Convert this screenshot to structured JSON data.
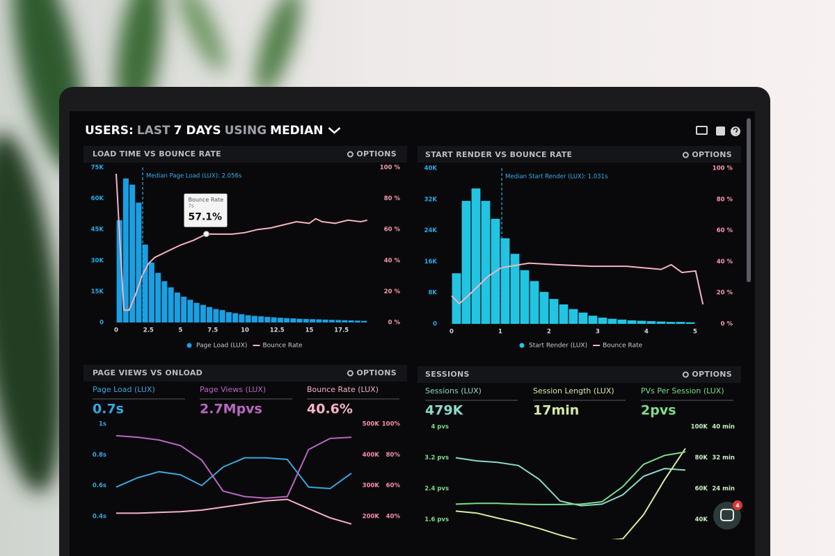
{
  "header": {
    "title_parts": [
      "USERS:",
      "LAST",
      "7 DAYS",
      "USING",
      "MEDIAN"
    ]
  },
  "chat_badge": 4,
  "panels": [
    {
      "type": "histogram-line",
      "title": "LOAD TIME VS BOUNCE RATE",
      "options": "OPTIONS",
      "median": 2.056,
      "annotation": "Median Page Load (LUX): 2.056s",
      "tooltip": {
        "title": "Bounce Rate",
        "x_label": "7s",
        "value_label": "57.1%",
        "x": 7,
        "value": 57.1
      },
      "xlim": [
        0,
        20
      ],
      "xticks": [
        0,
        2.5,
        5,
        7.5,
        10,
        12.5,
        15,
        17.5
      ],
      "ylim": [
        0,
        75000
      ],
      "yticks": [
        0,
        {
          "value": 15000,
          "label": "15K"
        },
        {
          "value": 30000,
          "label": "30K"
        },
        {
          "value": 45000,
          "label": "45K"
        },
        {
          "value": 60000,
          "label": "60K"
        },
        {
          "value": 75000,
          "label": "75K"
        }
      ],
      "y2lim": [
        0,
        100
      ],
      "y2ticks": [
        {
          "value": 0,
          "label": "0 %"
        },
        {
          "value": 20,
          "label": "20 %"
        },
        {
          "value": 40,
          "label": "40 %"
        },
        {
          "value": 60,
          "label": "60 %"
        },
        {
          "value": 80,
          "label": "80 %"
        },
        {
          "value": 100,
          "label": "100 %"
        }
      ],
      "bins": [
        0,
        0.5,
        1,
        1.5,
        2,
        2.5,
        3,
        3.5,
        4,
        4.5,
        5,
        5.5,
        6,
        6.5,
        7,
        7.5,
        8,
        8.5,
        9,
        9.5,
        10,
        10.5,
        11,
        11.5,
        12,
        12.5,
        13,
        13.5,
        14,
        14.5,
        15,
        15.5,
        16,
        16.5,
        17,
        17.5,
        18,
        18.5,
        19,
        19.5
      ],
      "series": [
        {
          "name": "Page Load (LUX)",
          "color": "#1a9fe2",
          "values": [
            49500,
            69700,
            66700,
            58000,
            37700,
            29000,
            24000,
            20000,
            17000,
            14500,
            12500,
            11000,
            9500,
            8500,
            7500,
            6500,
            6000,
            5000,
            4500,
            4000,
            3500,
            3200,
            3000,
            2700,
            2500,
            2300,
            2100,
            2000,
            1800,
            1700,
            1600,
            1500,
            1400,
            1300,
            1200,
            1100,
            1000,
            900,
            800
          ]
        },
        {
          "name": "Bounce Rate",
          "color": "#f4b4c2",
          "axis": "y2",
          "x": [
            0,
            0.3,
            0.6,
            1,
            1.5,
            2,
            2.5,
            3,
            4,
            5,
            6,
            7,
            8,
            9,
            10,
            11,
            12,
            13,
            14,
            15,
            15.5,
            16,
            17,
            18,
            19,
            19.5
          ],
          "values": [
            96,
            50,
            8,
            8,
            18,
            30,
            38,
            42,
            46,
            50,
            53,
            57.1,
            57,
            57,
            58,
            60,
            61,
            63,
            65,
            64,
            67,
            65,
            64,
            66,
            65,
            66
          ]
        }
      ]
    },
    {
      "type": "histogram-line",
      "title": "START RENDER VS BOUNCE RATE",
      "options": "OPTIONS",
      "median": 1.031,
      "annotation": "Median Start Render (LUX): 1.031s",
      "xlim": [
        0,
        5.2
      ],
      "xticks": [
        0,
        1,
        2,
        3,
        4,
        5
      ],
      "ylim": [
        0,
        40000
      ],
      "yticks": [
        0,
        {
          "value": 8000,
          "label": "8K"
        },
        {
          "value": 16000,
          "label": "16K"
        },
        {
          "value": 24000,
          "label": "24K"
        },
        {
          "value": 32000,
          "label": "32K"
        },
        {
          "value": 40000,
          "label": "40K"
        }
      ],
      "y2lim": [
        0,
        100
      ],
      "y2ticks": [
        {
          "value": 0,
          "label": "0 %"
        },
        {
          "value": 20,
          "label": "20 %"
        },
        {
          "value": 40,
          "label": "40 %"
        },
        {
          "value": 60,
          "label": "60 %"
        },
        {
          "value": 80,
          "label": "80 %"
        },
        {
          "value": 100,
          "label": "100 %"
        }
      ],
      "bins": [
        0,
        0.2,
        0.4,
        0.6,
        0.8,
        1,
        1.2,
        1.4,
        1.6,
        1.8,
        2,
        2.2,
        2.4,
        2.6,
        2.8,
        3,
        3.2,
        3.4,
        3.6,
        3.8,
        4,
        4.2,
        4.4,
        4.6,
        4.8,
        5
      ],
      "series": [
        {
          "name": "Start Render (LUX)",
          "color": "#22c4e2",
          "values": [
            13000,
            31600,
            34800,
            31600,
            27000,
            22000,
            18000,
            13800,
            11000,
            8200,
            6400,
            5000,
            3800,
            2900,
            2100,
            1600,
            1300,
            1100,
            900,
            800,
            700,
            600,
            500,
            500,
            400
          ]
        },
        {
          "name": "Bounce Rate",
          "color": "#f4b4c2",
          "axis": "y2",
          "x": [
            0,
            0.16,
            0.44,
            0.73,
            1.01,
            1.3,
            1.59,
            2.16,
            2.87,
            3.59,
            4.3,
            4.51,
            4.73,
            5.01,
            5.16
          ],
          "values": [
            18,
            13,
            21,
            30,
            36,
            37.5,
            39,
            38,
            37,
            37,
            35,
            38,
            33,
            34,
            12.5
          ]
        }
      ]
    },
    {
      "type": "line",
      "title": "PAGE VIEWS VS ONLOAD",
      "options": "OPTIONS",
      "categories": [
        null,
        null,
        null,
        null,
        null,
        null,
        null,
        null,
        null,
        null,
        null,
        null
      ],
      "ylim": [
        0.3,
        1.05
      ],
      "yticks": [
        {
          "value": 1,
          "label": "1s"
        },
        {
          "value": 0.8,
          "label": "0.8s"
        },
        {
          "value": 0.6,
          "label": "0.6s"
        },
        {
          "value": 0.4,
          "label": "0.4s"
        }
      ],
      "y2lim": [
        150000,
        525000
      ],
      "y2ticks": [
        {
          "value": 500000,
          "label": "500K"
        },
        {
          "value": 400000,
          "label": "400K"
        },
        {
          "value": 300000,
          "label": "300K"
        },
        {
          "value": 200000,
          "label": "200K"
        }
      ],
      "y3lim": [
        30,
        105
      ],
      "y3ticks": [
        {
          "value": 100,
          "label": "100%"
        },
        {
          "value": 80,
          "label": "80%"
        },
        {
          "value": 60,
          "label": "60%"
        },
        {
          "value": 40,
          "label": "40%"
        }
      ],
      "series": [
        {
          "name": "Page Load (LUX)",
          "stat": "0.7s",
          "color": "#3aa6de",
          "axis": "y",
          "values": [
            0.59,
            0.65,
            0.69,
            0.67,
            0.6,
            0.72,
            0.78,
            0.78,
            0.77,
            0.59,
            0.58,
            0.68
          ]
        },
        {
          "name": "Page Views (LUX)",
          "stat": "2.7Mpvs",
          "color": "#b866c0",
          "axis": "y2",
          "values": [
            462000,
            457000,
            448000,
            430000,
            383000,
            282000,
            264000,
            259000,
            264000,
            417000,
            453000,
            457000
          ]
        },
        {
          "name": "Bounce Rate (LUX)",
          "stat": "40.6%",
          "color": "#f6b2c6",
          "axis": "y3",
          "values": [
            42,
            42,
            42.5,
            43,
            44,
            46,
            48,
            50,
            51,
            45,
            39,
            35
          ]
        }
      ]
    },
    {
      "type": "line",
      "title": "SESSIONS",
      "options": "OPTIONS",
      "categories": [
        null,
        null,
        null,
        null,
        null,
        null,
        null,
        null,
        null,
        null,
        null,
        null
      ],
      "ylim": [
        1,
        4.2
      ],
      "yticks": [
        {
          "value": 4,
          "label": "4 pvs"
        },
        {
          "value": 3.2,
          "label": "3.2 pvs"
        },
        {
          "value": 2.4,
          "label": "2.4 pvs"
        },
        {
          "value": 1.6,
          "label": "1.6 pvs"
        }
      ],
      "y2lim": [
        25000,
        105000
      ],
      "y2ticks": [
        {
          "value": 100000,
          "label": "100K"
        },
        {
          "value": 80000,
          "label": "80K"
        },
        {
          "value": 60000,
          "label": "60K"
        },
        {
          "value": 40000,
          "label": "40K"
        }
      ],
      "y3lim": [
        10,
        42
      ],
      "y3ticks": [
        {
          "value": 40,
          "label": "40 min"
        },
        {
          "value": 32,
          "label": "32 min"
        },
        {
          "value": 24,
          "label": "24 min"
        }
      ],
      "series": [
        {
          "name": "Sessions (LUX)",
          "stat": "479K",
          "color": "#8ad9c8",
          "axis": "y2",
          "values": [
            80000,
            78000,
            77000,
            75000,
            66000,
            52000,
            49000,
            50000,
            56000,
            68000,
            73000,
            72000
          ]
        },
        {
          "name": "Session Length (LUX)",
          "stat": "17min",
          "color": "#d6ec9e",
          "axis": "y3",
          "values": [
            18.2,
            17.7,
            16.4,
            15.2,
            13.7,
            12,
            10.5,
            10.5,
            11,
            17.3,
            26.3,
            34.4
          ]
        },
        {
          "name": "PVs Per Session (LUX)",
          "stat": "2pvs",
          "color": "#7cdc8c",
          "axis": "y",
          "values": [
            2,
            2.02,
            2.02,
            2,
            1.99,
            1.99,
            2,
            2.06,
            2.45,
            3.03,
            3.26,
            3.35
          ]
        }
      ]
    }
  ]
}
